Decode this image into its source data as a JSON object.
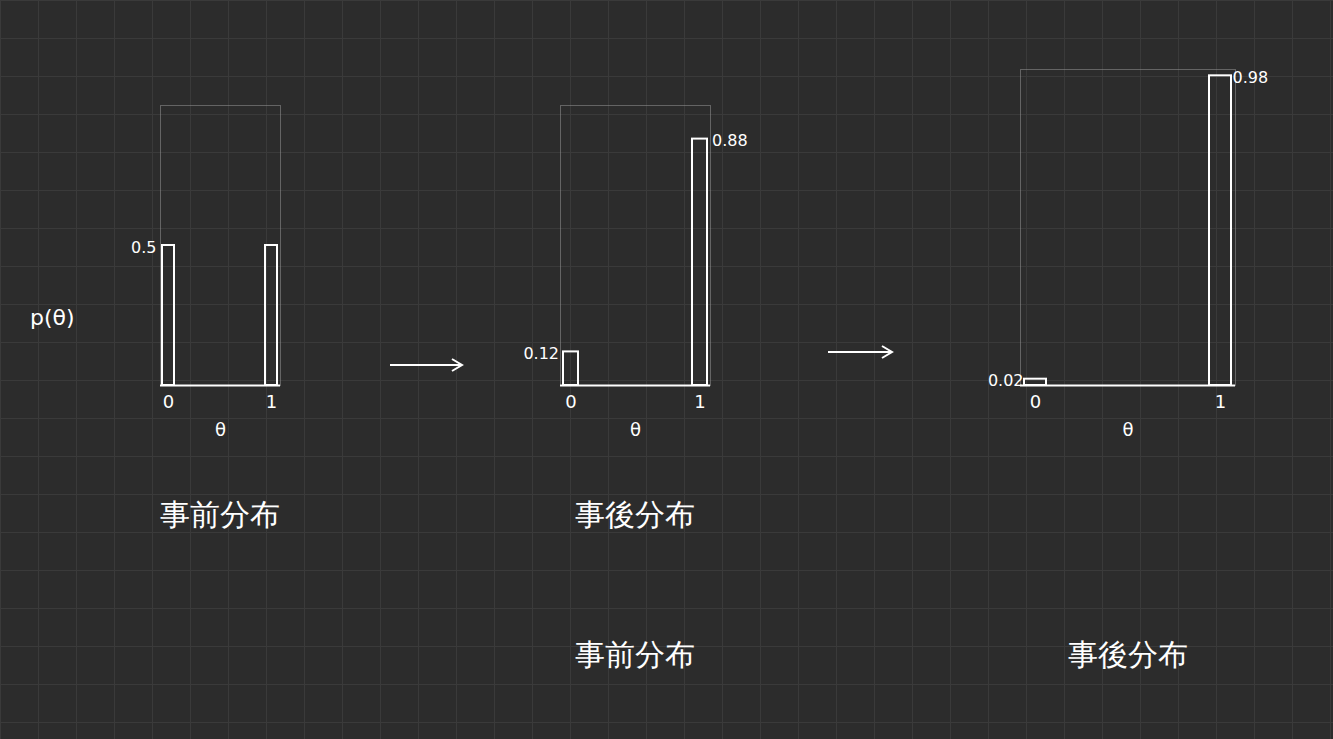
{
  "chart_data": [
    {
      "type": "bar",
      "categories": [
        "0",
        "1"
      ],
      "values": [
        0.5,
        0.5
      ],
      "value_labels": [
        "0.5",
        null
      ],
      "data_labels": true,
      "ylabel": "p(θ)",
      "xlabel": "θ",
      "ylim": [
        0,
        1
      ],
      "yticks": [],
      "tick_labels": "x",
      "color": "#ffffff",
      "captions": [
        "事前分布"
      ]
    },
    {
      "type": "bar",
      "categories": [
        "0",
        "1"
      ],
      "values": [
        0.12,
        0.88
      ],
      "value_labels": [
        "0.12",
        "0.88"
      ],
      "data_labels": true,
      "xlabel": "θ",
      "ylim": [
        0,
        1
      ],
      "yticks": [],
      "tick_labels": "x",
      "color": "#ffffff",
      "captions": [
        "事後分布",
        "事前分布"
      ]
    },
    {
      "type": "bar",
      "categories": [
        "0",
        "1"
      ],
      "values": [
        0.02,
        0.98
      ],
      "value_labels": [
        "0.02",
        "0.98"
      ],
      "data_labels": true,
      "xlabel": "θ",
      "ylim": [
        0,
        1
      ],
      "yticks": [],
      "tick_labels": "x",
      "color": "#ffffff",
      "captions": [
        null,
        "事後分布"
      ]
    }
  ]
}
